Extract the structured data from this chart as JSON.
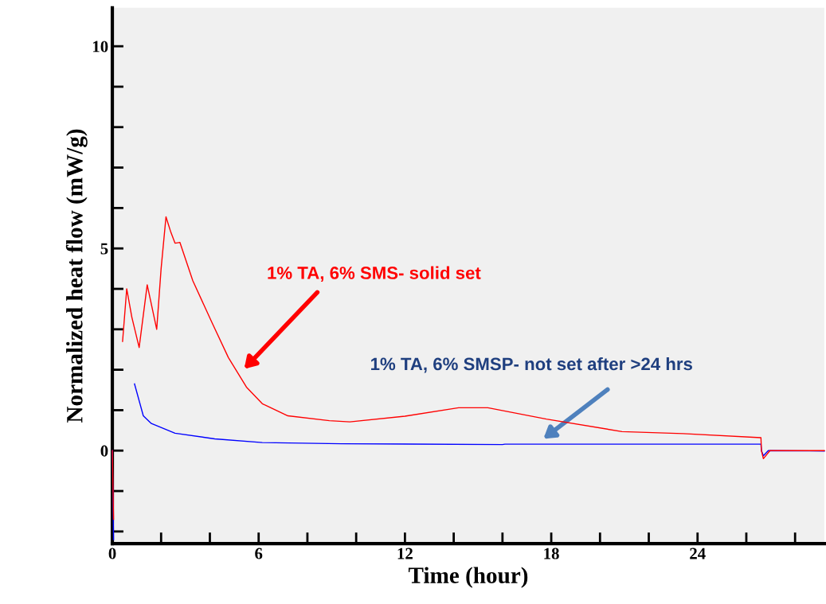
{
  "chart_data": {
    "type": "line",
    "xlabel": "Time (hour)",
    "ylabel": "Normalized heat flow (mW/g)",
    "xlim": [
      0,
      29.2
    ],
    "ylim": [
      -2.3,
      10.95
    ],
    "xticks": [
      0,
      {
        "value": 2,
        "label": null
      },
      {
        "value": 4,
        "label": null
      },
      6,
      {
        "value": 8,
        "label": null
      },
      {
        "value": 10,
        "label": null
      },
      12,
      {
        "value": 14,
        "label": null
      },
      {
        "value": 16,
        "label": null
      },
      18,
      {
        "value": 20,
        "label": null
      },
      {
        "value": 22,
        "label": null
      },
      24,
      {
        "value": 26,
        "label": null
      },
      {
        "value": 28,
        "label": null
      }
    ],
    "yticks": [
      {
        "value": -2,
        "label": null
      },
      {
        "value": -1,
        "label": null
      },
      0,
      {
        "value": 1,
        "label": null
      },
      {
        "value": 2,
        "label": null
      },
      {
        "value": 3,
        "label": null
      },
      {
        "value": 4,
        "label": null
      },
      5,
      {
        "value": 6,
        "label": null
      },
      {
        "value": 7,
        "label": null
      },
      {
        "value": 8,
        "label": null
      },
      {
        "value": 9,
        "label": null
      },
      10
    ],
    "grid": false,
    "legend": false,
    "marker": "none",
    "line_style": "solid",
    "series": [
      {
        "color": "#ff0000",
        "x": [
          0,
          0.05,
          0.1,
          0.38,
          0.42,
          0.59,
          0.8,
          1.1,
          1.43,
          1.82,
          2.0,
          2.2,
          2.4,
          2.57,
          2.77,
          3.3,
          4.1,
          4.76,
          5.5,
          6.15,
          7.2,
          8.9,
          9.74,
          12.0,
          14.2,
          15.4,
          17.8,
          20.9,
          23.4,
          26.6,
          26.62,
          26.7,
          26.97,
          27.5,
          29.2
        ],
        "values": [
          0,
          -1.7,
          null,
          null,
          2.7,
          4.0,
          3.3,
          2.55,
          4.1,
          3.0,
          4.5,
          5.78,
          5.4,
          5.13,
          5.15,
          4.2,
          3.15,
          2.3,
          1.57,
          1.16,
          0.86,
          0.74,
          0.71,
          0.85,
          1.06,
          1.06,
          0.78,
          0.47,
          0.42,
          0.32,
          0.0,
          -0.2,
          0.0,
          0.0,
          0.0
        ]
      },
      {
        "color": "#0000ff",
        "x": [
          0,
          0.05,
          0.1,
          0.55,
          0.91,
          1.27,
          1.6,
          2.57,
          4.2,
          6.15,
          9.4,
          16.0,
          16.1,
          26.6,
          26.62,
          26.7,
          26.9,
          29.2
        ],
        "values": [
          0,
          -2.2,
          null,
          null,
          1.65,
          0.86,
          0.67,
          0.43,
          0.29,
          0.2,
          0.17,
          0.15,
          0.16,
          0.16,
          0.0,
          -0.13,
          0.0,
          -0.01
        ]
      }
    ],
    "annotations": [
      "1% TA, 6% SMS- solid set",
      "1% TA, 6% SMSP- not set after >24 hrs"
    ]
  }
}
